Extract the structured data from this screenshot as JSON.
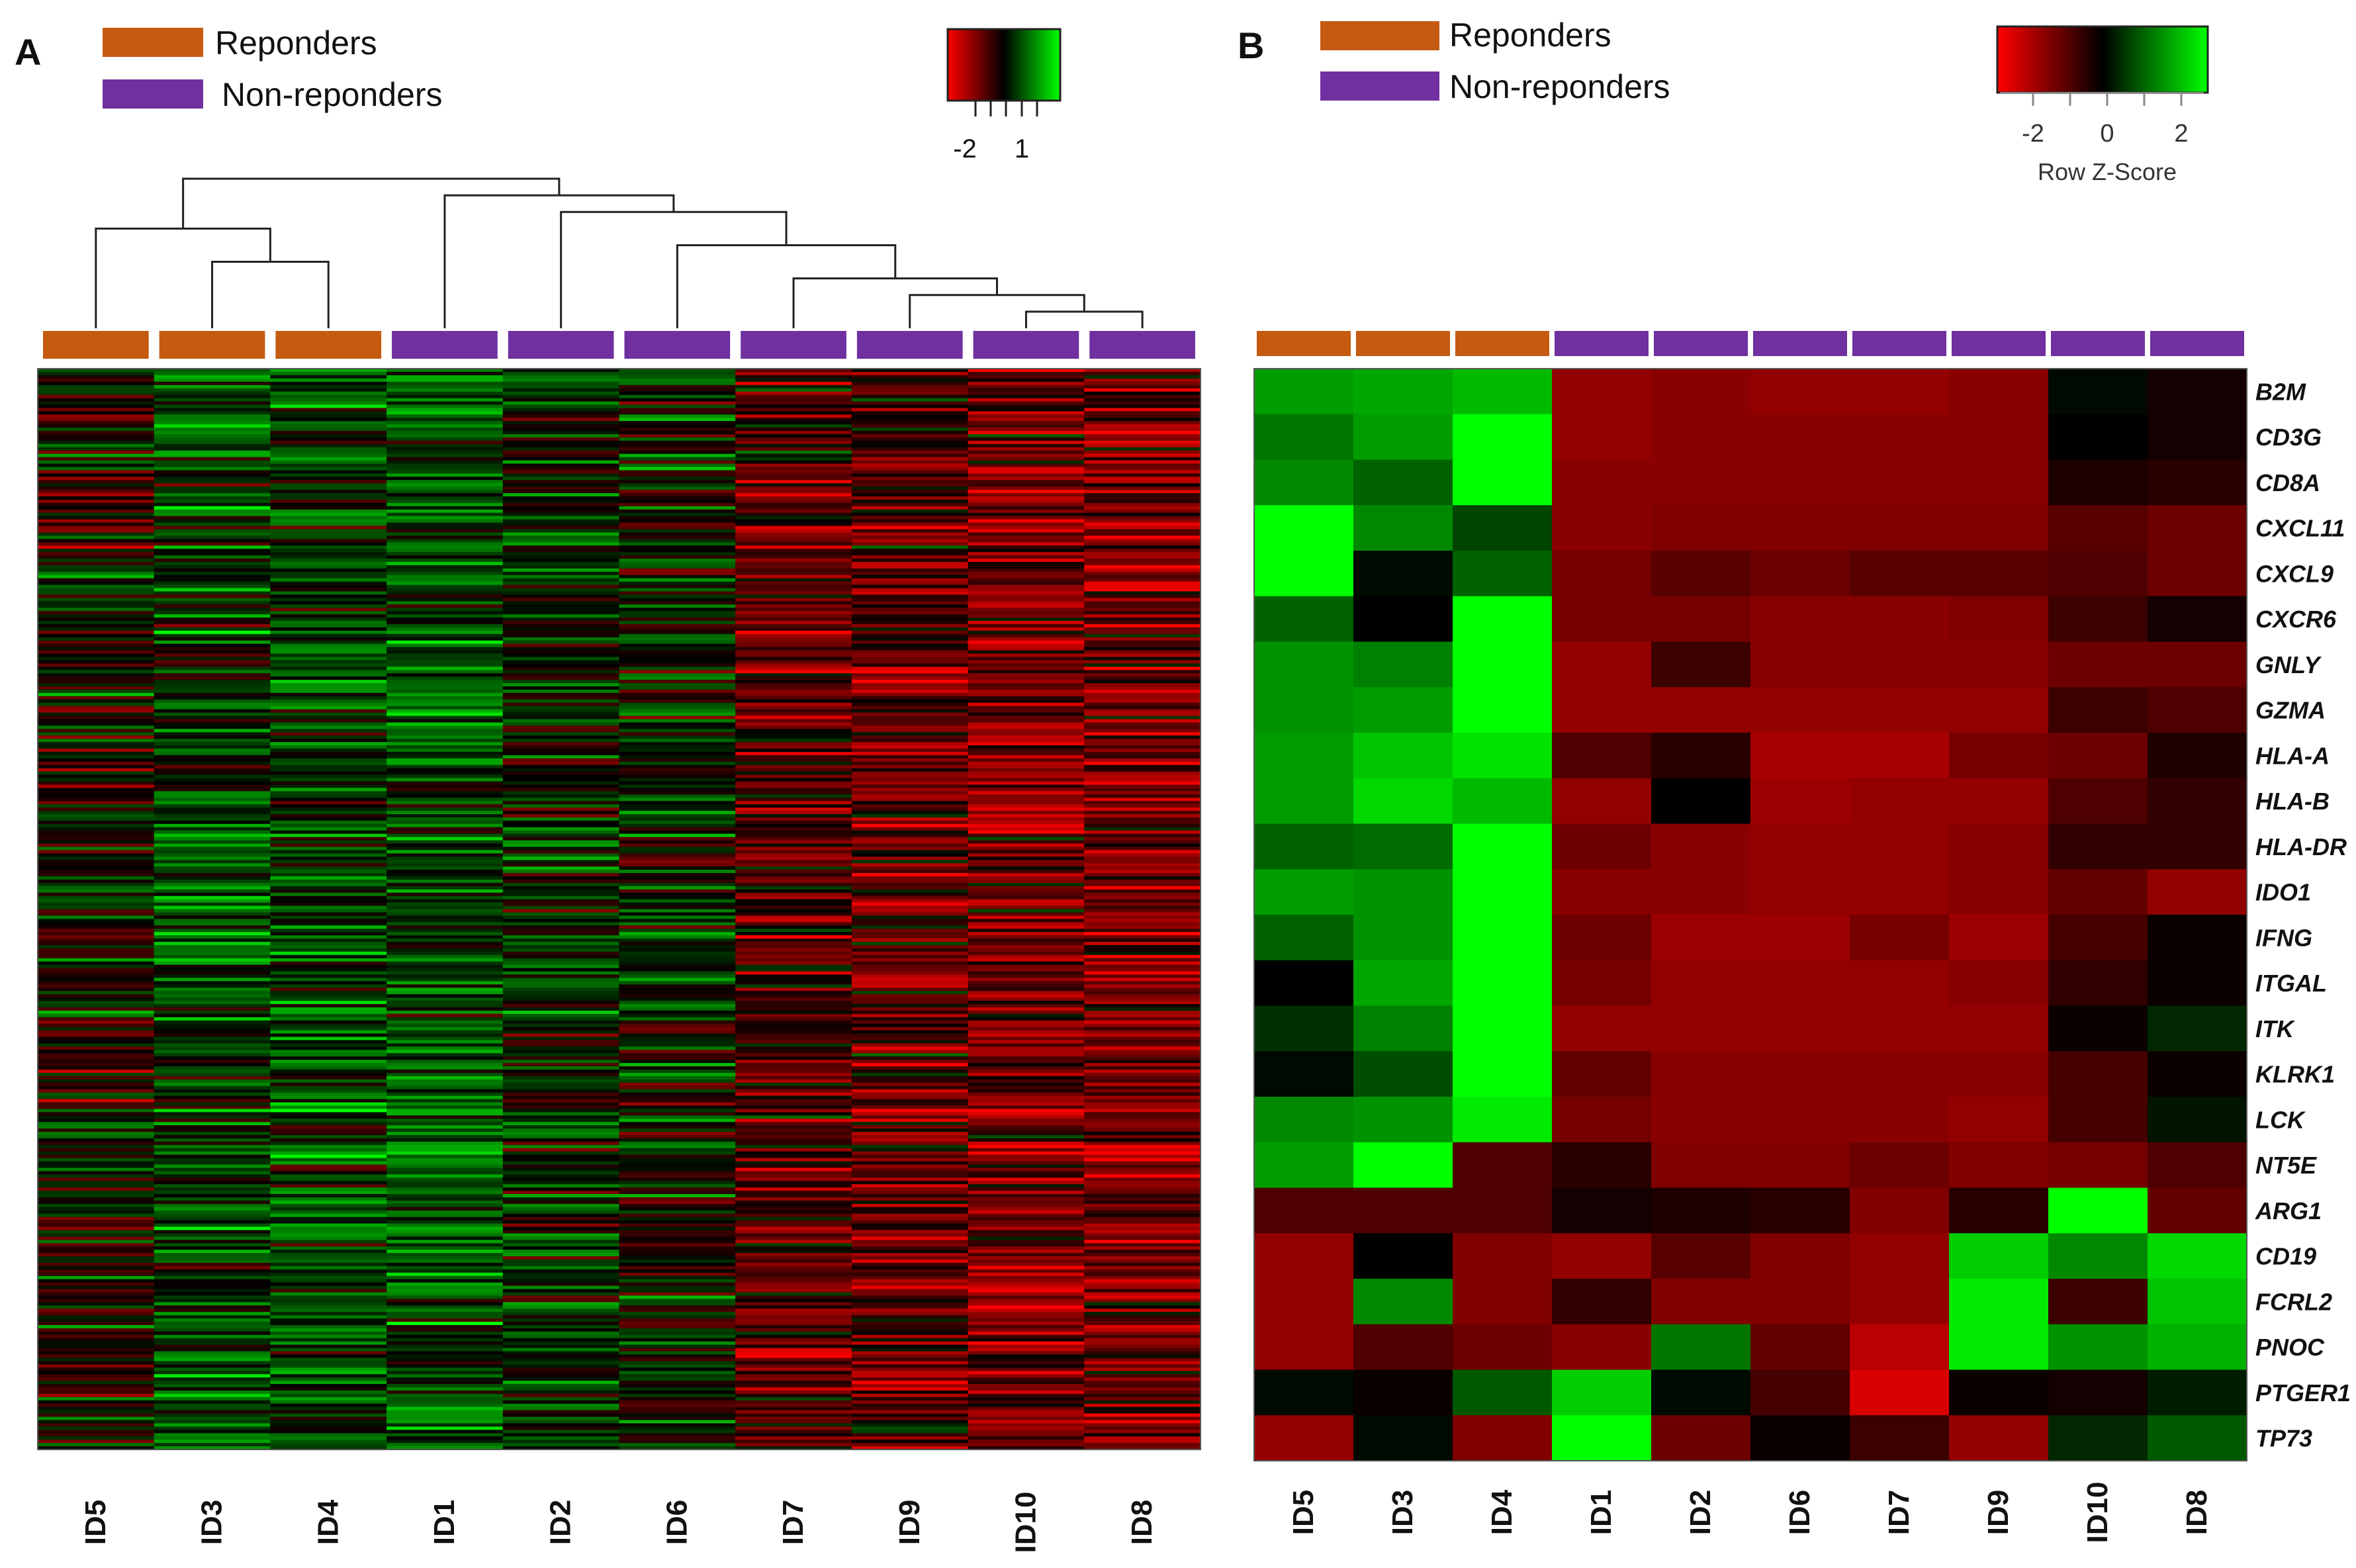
{
  "panels": {
    "a": {
      "label": "A"
    },
    "b": {
      "label": "B"
    }
  },
  "legend": {
    "responders_label": "Reponders",
    "non_responders_label": "Non-reponders",
    "responders_color": "#C55A11",
    "non_responders_color": "#7030A0"
  },
  "colorkey_a": {
    "ticks": [
      "-2",
      "1"
    ],
    "gradient": [
      "#FF0000",
      "#000000",
      "#00FF00"
    ]
  },
  "colorkey_b": {
    "ticks": [
      "-2",
      "0",
      "2"
    ],
    "title": "Row Z-Score",
    "gradient": [
      "#FF0000",
      "#000000",
      "#00FF00"
    ]
  },
  "chart_data": [
    {
      "type": "heatmap",
      "panel": "A",
      "columns": [
        "ID5",
        "ID3",
        "ID4",
        "ID1",
        "ID2",
        "ID6",
        "ID7",
        "ID9",
        "ID10",
        "ID8"
      ],
      "column_groups": [
        "responder",
        "responder",
        "responder",
        "non-responder",
        "non-responder",
        "non-responder",
        "non-responder",
        "non-responder",
        "non-responder",
        "non-responder"
      ],
      "column_mean_zscore": [
        -0.1,
        0.6,
        0.6,
        0.8,
        0.3,
        0.2,
        -0.8,
        -0.9,
        -1.2,
        -1.2
      ],
      "dendrogram_merge_order": [
        [
          "ID10",
          "ID8"
        ],
        [
          "ID9",
          "ID10+ID8"
        ],
        [
          "ID7",
          "ID9+ID10+ID8"
        ],
        [
          "ID3",
          "ID4"
        ],
        [
          "ID6",
          "ID7+ID9+ID10+ID8"
        ],
        [
          "ID5",
          "ID3+ID4"
        ],
        [
          "ID2",
          "ID6+ID7+ID9+ID10+ID8"
        ],
        [
          "ID1",
          "ID2+ID6+ID7+ID9+ID10+ID8"
        ],
        [
          "ID5+ID3+ID4",
          "ID1+ID2+ID6+ID7+ID9+ID10+ID8"
        ]
      ],
      "color_scale": {
        "low": "#FF0000",
        "mid": "#000000",
        "high": "#00FF00"
      }
    },
    {
      "type": "heatmap",
      "panel": "B",
      "columns": [
        "ID5",
        "ID3",
        "ID4",
        "ID1",
        "ID2",
        "ID6",
        "ID7",
        "ID9",
        "ID10",
        "ID8"
      ],
      "column_groups": [
        "responder",
        "responder",
        "responder",
        "non-responder",
        "non-responder",
        "non-responder",
        "non-responder",
        "non-responder",
        "non-responder",
        "non-responder"
      ],
      "rows": [
        "B2M",
        "CD3G",
        "CD8A",
        "CXCL11",
        "CXCL9",
        "CXCR6",
        "GNLY",
        "GZMA",
        "HLA-A",
        "HLA-B",
        "HLA-DR",
        "IDO1",
        "IFNG",
        "ITGAL",
        "ITK",
        "KLRK1",
        "LCK",
        "NT5E",
        "ARG1",
        "CD19",
        "FCRL2",
        "PNOC",
        "PTGER1",
        "TP73"
      ],
      "values": [
        [
          1.6,
          1.7,
          1.9,
          -1.5,
          -1.4,
          -1.5,
          -1.5,
          -1.4,
          0.1,
          -0.2
        ],
        [
          1.2,
          1.6,
          2.6,
          -1.5,
          -1.4,
          -1.4,
          -1.4,
          -1.4,
          0.0,
          -0.2
        ],
        [
          1.4,
          1.0,
          2.6,
          -1.4,
          -1.4,
          -1.4,
          -1.4,
          -1.4,
          -0.3,
          -0.4
        ],
        [
          2.6,
          1.4,
          0.7,
          -1.4,
          -1.3,
          -1.3,
          -1.3,
          -1.3,
          -0.9,
          -1.1
        ],
        [
          2.6,
          0.1,
          1.0,
          -1.2,
          -0.9,
          -1.1,
          -0.9,
          -0.9,
          -0.8,
          -1.1
        ],
        [
          1.0,
          0.0,
          2.6,
          -1.2,
          -1.2,
          -1.4,
          -1.4,
          -1.3,
          -0.6,
          -0.2
        ],
        [
          1.5,
          1.3,
          2.6,
          -1.5,
          -0.6,
          -1.4,
          -1.4,
          -1.4,
          -1.1,
          -1.1
        ],
        [
          1.5,
          1.6,
          2.6,
          -1.5,
          -1.5,
          -1.5,
          -1.5,
          -1.5,
          -0.6,
          -0.8
        ],
        [
          1.6,
          2.0,
          2.3,
          -0.8,
          -0.4,
          -1.7,
          -1.7,
          -1.2,
          -1.1,
          -0.3
        ],
        [
          1.6,
          2.2,
          1.9,
          -1.5,
          0.0,
          -1.6,
          -1.5,
          -1.5,
          -0.8,
          -0.5
        ],
        [
          1.0,
          1.1,
          2.6,
          -1.1,
          -1.4,
          -1.5,
          -1.5,
          -1.4,
          -0.5,
          -0.5
        ],
        [
          1.6,
          1.5,
          2.6,
          -1.4,
          -1.4,
          -1.5,
          -1.5,
          -1.4,
          -1.0,
          -1.5
        ],
        [
          1.0,
          1.5,
          2.6,
          -1.1,
          -1.6,
          -1.6,
          -1.2,
          -1.6,
          -0.7,
          -0.1
        ],
        [
          0.0,
          1.7,
          2.6,
          -1.2,
          -1.5,
          -1.5,
          -1.5,
          -1.4,
          -0.5,
          -0.1
        ],
        [
          0.5,
          1.3,
          2.6,
          -1.5,
          -1.5,
          -1.5,
          -1.5,
          -1.5,
          -0.1,
          0.4
        ],
        [
          0.1,
          0.8,
          2.6,
          -1.0,
          -1.4,
          -1.4,
          -1.4,
          -1.4,
          -0.7,
          -0.1
        ],
        [
          1.4,
          1.5,
          2.4,
          -1.2,
          -1.4,
          -1.4,
          -1.4,
          -1.5,
          -0.7,
          0.2
        ],
        [
          1.6,
          2.6,
          -0.8,
          -0.4,
          -1.3,
          -1.3,
          -1.1,
          -1.3,
          -1.2,
          -0.8
        ],
        [
          -0.8,
          -0.8,
          -0.8,
          -0.2,
          -0.3,
          -0.4,
          -1.3,
          -0.4,
          2.6,
          -1.0
        ],
        [
          -1.5,
          0.0,
          -1.3,
          -1.5,
          -0.9,
          -1.3,
          -1.5,
          2.1,
          1.4,
          2.2
        ],
        [
          -1.5,
          1.4,
          -1.3,
          -0.5,
          -1.3,
          -1.3,
          -1.5,
          2.4,
          -0.6,
          2.0
        ],
        [
          -1.5,
          -0.8,
          -1.1,
          -1.4,
          1.2,
          -1.0,
          -1.9,
          2.4,
          1.5,
          1.8
        ],
        [
          0.1,
          -0.1,
          0.9,
          2.1,
          0.1,
          -0.7,
          -2.2,
          -0.1,
          -0.2,
          0.3
        ],
        [
          -1.5,
          0.1,
          -1.3,
          2.6,
          -1.1,
          -0.1,
          -0.6,
          -1.5,
          0.4,
          0.9
        ]
      ],
      "color_scale": {
        "low": "#FF0000",
        "mid": "#000000",
        "high": "#00FF00"
      }
    }
  ]
}
